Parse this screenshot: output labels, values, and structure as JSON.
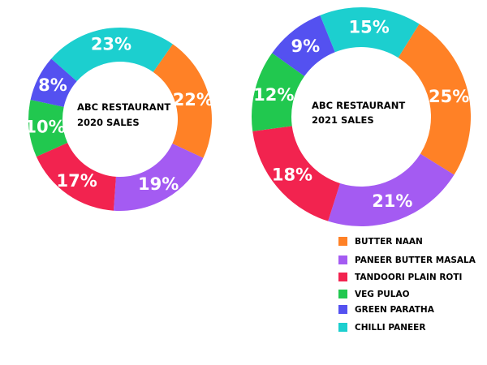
{
  "chart_data": [
    {
      "type": "pie",
      "title_line1": "ABC RESTAURANT",
      "title_line2": "2020 SALES",
      "categories": [
        "BUTTER NAAN",
        "PANEER BUTTER MASALA",
        "TANDOORI PLAIN ROTI",
        "VEG PULAO",
        "GREEN PARATHA",
        "CHILLI PANEER"
      ],
      "values": [
        22,
        19,
        17,
        10,
        8,
        23
      ],
      "labels": [
        "22%",
        "19%",
        "17%",
        "10%",
        "8%",
        "23%"
      ],
      "hole": true
    },
    {
      "type": "pie",
      "title_line1": "ABC RESTAURANT",
      "title_line2": "2021 SALES",
      "categories": [
        "BUTTER NAAN",
        "PANEER BUTTER MASALA",
        "TANDOORI PLAIN ROTI",
        "VEG PULAO",
        "GREEN PARATHA",
        "CHILLI PANEER"
      ],
      "values": [
        25,
        21,
        18,
        12,
        9,
        15
      ],
      "labels": [
        "25%",
        "21%",
        "18%",
        "12%",
        "9%",
        "15%"
      ],
      "hole": true
    }
  ],
  "legend": {
    "position": "bottom-right",
    "items": [
      {
        "label": "BUTTER NAAN",
        "color": "#FF8126"
      },
      {
        "label": "PANEER BUTTER MASALA",
        "color": "#A45BF2"
      },
      {
        "label": "TANDOORI PLAIN ROTI",
        "color": "#F2234F"
      },
      {
        "label": "VEG PULAO",
        "color": "#21C84F"
      },
      {
        "label": "GREEN PARATHA",
        "color": "#5451F0"
      },
      {
        "label": "CHILLI PANEER",
        "color": "#1CCFCF"
      }
    ]
  }
}
